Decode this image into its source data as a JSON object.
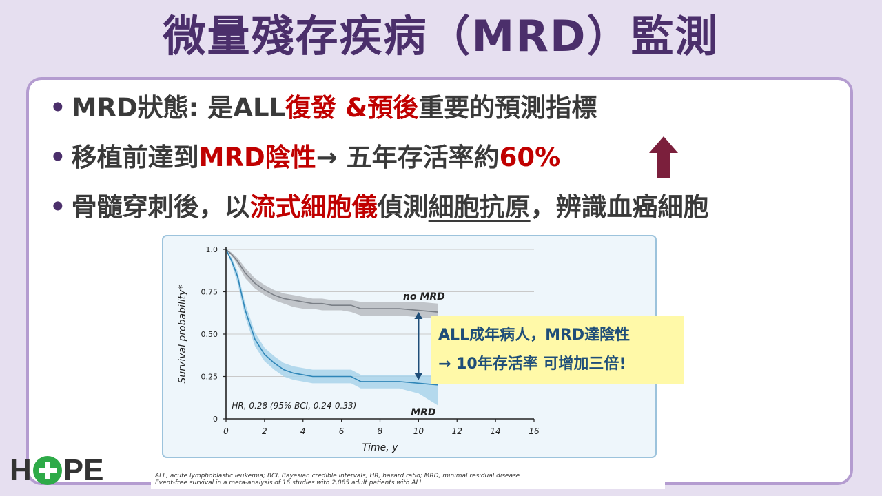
{
  "slide": {
    "title": "微量殘存疾病（MRD）監測",
    "bullet_char": "•",
    "bullets": [
      {
        "parts": [
          "MRD狀態:  是ALL",
          "復發 &預後",
          "重要的預測指標"
        ]
      },
      {
        "parts": [
          "移植前達到",
          "MRD陰性",
          "→ 五年存活率約",
          "60%"
        ]
      },
      {
        "parts": [
          "骨髓穿刺後，以",
          "流式細胞儀",
          "偵測",
          "細胞抗原",
          "，辨識血癌細胞"
        ]
      }
    ],
    "up_arrow_icon": "up-arrow-icon",
    "accent_color": "#c00000",
    "title_color": "#4b2f6b"
  },
  "callout": {
    "line1": "ALL成年病人，MRD達陰性",
    "line2": "→ 10年存活率 可增加三倍!"
  },
  "logo": {
    "left": "H",
    "icon": "plus-icon",
    "right": "PE"
  },
  "chart_data": {
    "type": "line",
    "xlabel": "Time, y",
    "ylabel": "Survival probability*",
    "xlim": [
      0,
      16
    ],
    "ylim": [
      0,
      1.0
    ],
    "xticks": [
      0,
      2,
      4,
      6,
      8,
      10,
      12,
      14,
      16
    ],
    "yticks": [
      0,
      0.25,
      0.5,
      0.75,
      1.0
    ],
    "ytick_labels": [
      "0",
      "0.25",
      "0.50",
      "0.75",
      "1.0"
    ],
    "grid": true,
    "annotation": "HR, 0.28 (95% BCI, 0.24-0.33)",
    "series": [
      {
        "name": "no MRD",
        "color": "#7a7f86",
        "band_color": "#b9bcc1",
        "x": [
          0,
          0.3,
          0.6,
          1,
          1.5,
          2,
          2.5,
          3,
          3.5,
          4,
          4.5,
          5,
          5.5,
          6,
          6.5,
          7,
          7.5,
          8,
          9,
          10,
          11
        ],
        "y": [
          1.0,
          0.97,
          0.93,
          0.86,
          0.8,
          0.76,
          0.73,
          0.71,
          0.7,
          0.69,
          0.68,
          0.68,
          0.67,
          0.67,
          0.67,
          0.65,
          0.65,
          0.65,
          0.65,
          0.64,
          0.63
        ],
        "lower": [
          1.0,
          0.96,
          0.91,
          0.83,
          0.77,
          0.73,
          0.7,
          0.68,
          0.66,
          0.65,
          0.65,
          0.64,
          0.64,
          0.64,
          0.63,
          0.61,
          0.61,
          0.61,
          0.61,
          0.6,
          0.59
        ],
        "upper": [
          1.0,
          0.98,
          0.95,
          0.89,
          0.83,
          0.79,
          0.76,
          0.74,
          0.73,
          0.72,
          0.71,
          0.71,
          0.7,
          0.7,
          0.7,
          0.69,
          0.69,
          0.69,
          0.69,
          0.69,
          0.68
        ]
      },
      {
        "name": "MRD",
        "color": "#2f86b8",
        "band_color": "#a9d4ea",
        "x": [
          0,
          0.3,
          0.6,
          1,
          1.5,
          2,
          2.5,
          3,
          3.5,
          4,
          4.5,
          5,
          5.5,
          6,
          6.5,
          7,
          7.5,
          8,
          9,
          10,
          11
        ],
        "y": [
          1.0,
          0.93,
          0.84,
          0.64,
          0.47,
          0.38,
          0.33,
          0.29,
          0.27,
          0.26,
          0.25,
          0.25,
          0.25,
          0.25,
          0.25,
          0.22,
          0.22,
          0.22,
          0.22,
          0.21,
          0.2
        ],
        "lower": [
          1.0,
          0.91,
          0.8,
          0.6,
          0.43,
          0.34,
          0.29,
          0.25,
          0.23,
          0.22,
          0.21,
          0.21,
          0.21,
          0.21,
          0.21,
          0.18,
          0.18,
          0.18,
          0.18,
          0.15,
          0.08
        ],
        "upper": [
          1.0,
          0.95,
          0.87,
          0.68,
          0.51,
          0.42,
          0.37,
          0.33,
          0.31,
          0.3,
          0.29,
          0.29,
          0.29,
          0.29,
          0.29,
          0.26,
          0.26,
          0.26,
          0.26,
          0.26,
          0.26
        ]
      }
    ],
    "footnote": "ALL, acute lymphoblastic leukemia; BCI, Bayesian credible intervals; HR, hazard ratio; MRD, minimal residual disease\nEvent-free survival in a meta-analysis of 16 studies with 2,065 adult patients with ALL"
  }
}
